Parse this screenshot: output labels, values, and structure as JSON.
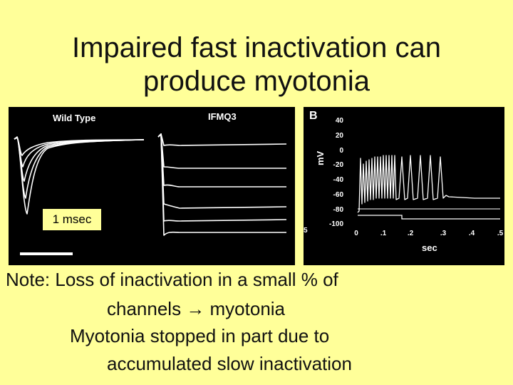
{
  "title_line1": "Impaired fast inactivation can",
  "title_line2": "produce myotonia",
  "panel_a": {
    "label_wt": "Wild Type",
    "label_ifmq3": "IFMQ3",
    "scale_label": "1 msec"
  },
  "panel_b": {
    "label": "B",
    "ylabel": "mV",
    "xlabel": "sec",
    "yticks": [
      "40",
      "20",
      "0",
      "-20",
      "-40",
      "-60",
      "-80",
      "-100"
    ],
    "xticks": [
      "0",
      ".1",
      ".2",
      ".3",
      ".4",
      ".5"
    ],
    "left_edge_tick": "5"
  },
  "notes": {
    "line1": "Note: Loss of inactivation in a small % of",
    "line2": "channels → myotonia",
    "line3": "Myotonia stopped in part due to",
    "line4": "accumulated slow inactivation"
  },
  "colors": {
    "background": "#ffff99",
    "panel": "#000000",
    "trace": "#ffffff"
  }
}
